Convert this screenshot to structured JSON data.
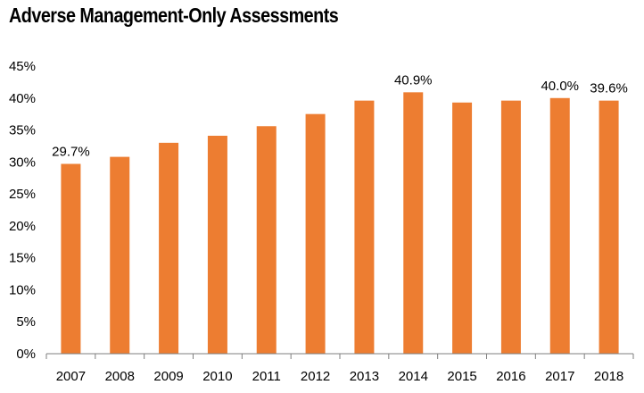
{
  "chart_data": {
    "type": "bar",
    "title": "Adverse Management-Only Assessments",
    "categories": [
      "2007",
      "2008",
      "2009",
      "2010",
      "2011",
      "2012",
      "2013",
      "2014",
      "2015",
      "2016",
      "2017",
      "2018"
    ],
    "values": [
      29.7,
      30.8,
      33.0,
      34.1,
      35.6,
      37.5,
      39.6,
      40.9,
      39.3,
      39.6,
      40.0,
      39.6
    ],
    "data_labels": [
      {
        "category": "2007",
        "text": "29.7%"
      },
      {
        "category": "2014",
        "text": "40.9%"
      },
      {
        "category": "2017",
        "text": "40.0%"
      },
      {
        "category": "2018",
        "text": "39.6%"
      }
    ],
    "yticks": [
      "0%",
      "5%",
      "10%",
      "15%",
      "20%",
      "25%",
      "30%",
      "35%",
      "40%",
      "45%"
    ],
    "ylim": [
      0,
      45
    ],
    "xlabel": "",
    "ylabel": "",
    "grid": false,
    "legend": "none",
    "bar_color": "#ED7D31",
    "axis_color": "#7F7F7F"
  }
}
